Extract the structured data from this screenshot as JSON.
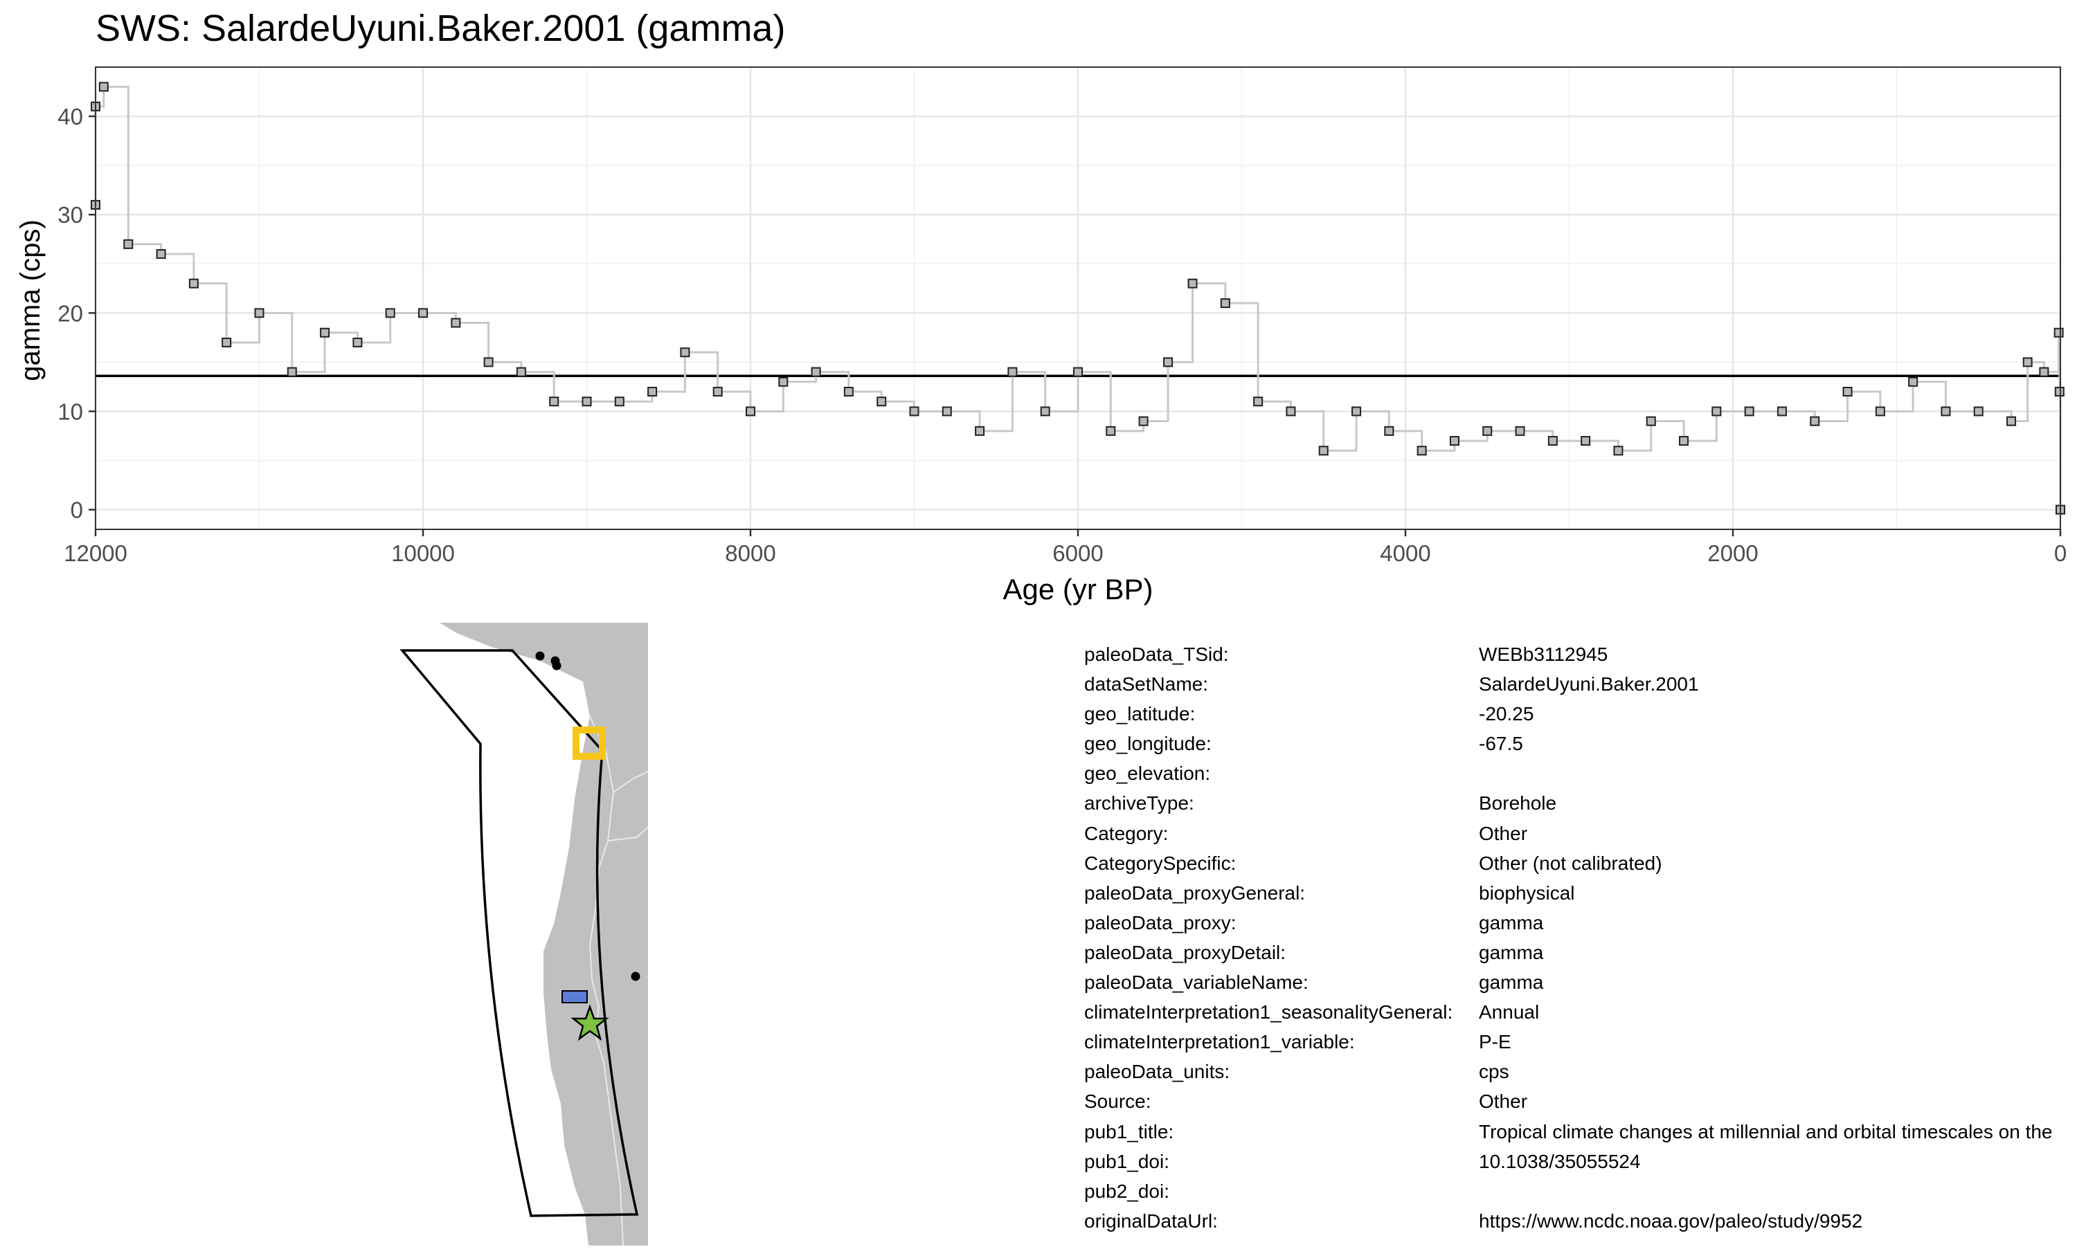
{
  "chart_data": {
    "type": "line",
    "title": "SWS: SalardeUyuni.Baker.2001 (gamma)",
    "xlabel": "Age (yr BP)",
    "ylabel": "gamma (cps)",
    "xlim": [
      12000,
      0
    ],
    "ylim": [
      -2,
      45
    ],
    "x_reversed": true,
    "grid": true,
    "x_ticks": [
      12000,
      10000,
      8000,
      6000,
      4000,
      2000,
      0
    ],
    "y_ticks": [
      0,
      10,
      20,
      30,
      40
    ],
    "reference_line": 13.6,
    "series": [
      {
        "step": true,
        "x": [
          12100,
          12050,
          11950,
          11800,
          11600,
          11400,
          11200,
          11000,
          10800,
          10600,
          10400,
          10200,
          10000,
          9800,
          9600,
          9400,
          9200,
          9000,
          8800,
          8600,
          8400,
          8200,
          8000,
          7800,
          7600,
          7400,
          7200,
          7000,
          6800,
          6600,
          6400,
          6200,
          6000,
          5800,
          5600,
          5450,
          5300,
          5100,
          4900,
          4700,
          4500,
          4300,
          4100,
          3900,
          3700,
          3500,
          3300,
          3100,
          2900,
          2700,
          2500,
          2300,
          2100,
          1900,
          1700,
          1500,
          1300,
          1100,
          900,
          700,
          500,
          300,
          200,
          100,
          10,
          5,
          0
        ],
        "y": [
          31,
          41,
          43,
          27,
          26,
          23,
          17,
          20,
          14,
          18,
          17,
          20,
          20,
          19,
          15,
          14,
          11,
          11,
          11,
          12,
          16,
          12,
          10,
          13,
          14,
          12,
          11,
          10,
          10,
          8,
          14,
          10,
          14,
          8,
          9,
          15,
          23,
          21,
          11,
          10,
          6,
          10,
          8,
          6,
          7,
          8,
          8,
          7,
          7,
          6,
          9,
          7,
          10,
          10,
          10,
          9,
          12,
          10,
          13,
          10,
          10,
          9,
          15,
          14,
          18,
          12,
          0
        ]
      }
    ]
  },
  "map": {
    "land_color": "#c0c0c0",
    "border_color": "#e8e8e8",
    "outline_color": "#000000",
    "target_marker_color": "#f5c518",
    "rect_marker_color": "#5b7fd6",
    "star_marker_color": "#7dc242"
  },
  "metadata": [
    {
      "key": "paleoData_TSid:",
      "value": "WEBb3112945"
    },
    {
      "key": "dataSetName:",
      "value": "SalardeUyuni.Baker.2001"
    },
    {
      "key": "geo_latitude:",
      "value": "-20.25"
    },
    {
      "key": "geo_longitude:",
      "value": "-67.5"
    },
    {
      "key": "geo_elevation:",
      "value": ""
    },
    {
      "key": "archiveType:",
      "value": "Borehole"
    },
    {
      "key": "Category:",
      "value": "Other"
    },
    {
      "key": "CategorySpecific:",
      "value": "Other (not calibrated)"
    },
    {
      "key": "paleoData_proxyGeneral:",
      "value": "biophysical"
    },
    {
      "key": "paleoData_proxy:",
      "value": "gamma"
    },
    {
      "key": "paleoData_proxyDetail:",
      "value": "gamma"
    },
    {
      "key": "paleoData_variableName:",
      "value": "gamma"
    },
    {
      "key": "climateInterpretation1_seasonalityGeneral:",
      "value": "Annual"
    },
    {
      "key": "climateInterpretation1_variable:",
      "value": "P-E"
    },
    {
      "key": "paleoData_units:",
      "value": "cps"
    },
    {
      "key": "Source:",
      "value": "Other"
    },
    {
      "key": "pub1_title:",
      "value": "Tropical climate changes at millennial and orbital timescales on the"
    },
    {
      "key": "pub1_doi:",
      "value": "10.1038/35055524"
    },
    {
      "key": "pub2_doi:",
      "value": ""
    },
    {
      "key": "originalDataUrl:",
      "value": "https://www.ncdc.noaa.gov/paleo/study/9952"
    }
  ]
}
